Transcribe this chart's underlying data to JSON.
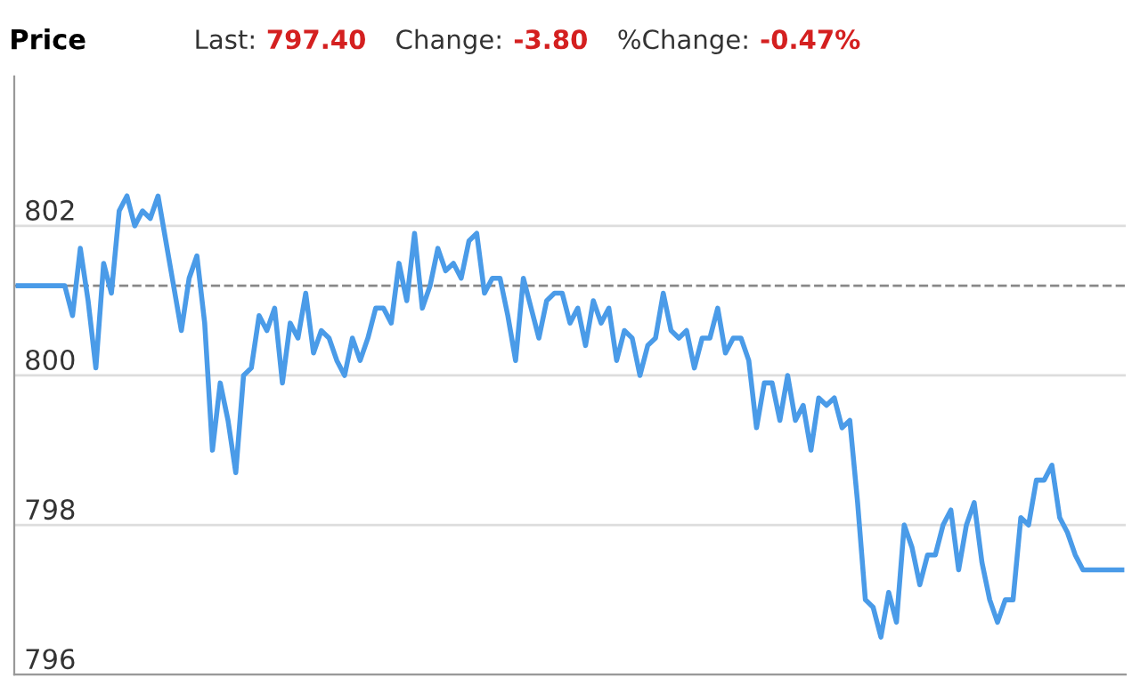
{
  "chart_data": {
    "type": "line",
    "title": "Price",
    "annotations": [
      "Last:",
      "797.40",
      "Change:",
      "-3.80",
      "%Change:",
      "-0.47%"
    ],
    "categories": [
      null,
      null,
      null,
      null,
      null,
      null,
      null,
      null,
      null,
      null,
      null,
      null,
      null,
      null,
      null,
      null,
      null,
      null,
      null,
      null,
      null,
      null,
      null,
      null,
      null,
      null,
      null,
      null,
      null,
      null,
      null,
      null,
      null,
      null,
      null,
      null,
      null,
      null,
      null,
      null,
      null,
      null,
      null,
      null,
      null,
      null,
      null,
      null,
      null,
      null,
      null,
      null,
      null,
      null,
      null,
      null,
      null,
      null,
      null,
      null,
      null,
      null,
      null,
      null,
      null,
      null,
      null,
      null,
      null,
      null,
      null,
      null,
      null,
      null,
      null,
      null,
      null,
      null,
      null,
      null,
      null,
      null,
      null,
      null,
      null,
      null,
      null,
      null,
      null,
      null,
      null,
      null,
      null,
      null,
      null,
      null,
      null,
      null,
      null,
      null,
      null,
      null,
      null,
      null,
      null,
      null,
      null,
      null,
      null,
      null,
      null,
      null,
      null,
      null,
      null,
      null,
      null,
      null,
      null,
      null,
      null,
      null,
      null,
      null,
      null,
      null,
      null,
      null,
      null,
      null,
      null,
      null,
      null,
      null,
      null,
      null,
      null,
      null,
      null,
      null,
      null,
      null,
      null
    ],
    "series": [
      {
        "color": "#4a9be8",
        "values": [
          801.2,
          801.2,
          801.2,
          801.2,
          801.2,
          801.2,
          801.2,
          800.8,
          801.7,
          801.0,
          800.1,
          801.5,
          801.1,
          802.2,
          802.4,
          802.0,
          802.2,
          802.1,
          802.4,
          801.8,
          801.2,
          800.6,
          801.3,
          801.6,
          800.7,
          799.0,
          799.9,
          799.4,
          798.7,
          800.0,
          800.1,
          800.8,
          800.6,
          800.9,
          799.9,
          800.7,
          800.5,
          801.1,
          800.3,
          800.6,
          800.5,
          800.2,
          800.0,
          800.5,
          800.2,
          800.5,
          800.9,
          800.9,
          800.7,
          801.5,
          801.0,
          801.9,
          800.9,
          801.2,
          801.7,
          801.4,
          801.5,
          801.3,
          801.8,
          801.9,
          801.1,
          801.3,
          801.3,
          800.8,
          800.2,
          801.3,
          800.9,
          800.5,
          801.0,
          801.1,
          801.1,
          800.7,
          800.9,
          800.4,
          801.0,
          800.7,
          800.9,
          800.2,
          800.6,
          800.5,
          800.0,
          800.4,
          800.5,
          801.1,
          800.6,
          800.5,
          800.6,
          800.1,
          800.5,
          800.5,
          800.9,
          800.3,
          800.5,
          800.5,
          800.2,
          799.3,
          799.9,
          799.9,
          799.4,
          800.0,
          799.4,
          799.6,
          799.0,
          799.7,
          799.6,
          799.7,
          799.3,
          799.4,
          798.3,
          797.0,
          796.9,
          796.5,
          797.1,
          796.7,
          798.0,
          797.7,
          797.2,
          797.6,
          797.6,
          798.0,
          798.2,
          797.4,
          798.0,
          798.3,
          797.5,
          797.0,
          796.7,
          797.0,
          797.0,
          798.1,
          798.0,
          798.6,
          798.6,
          798.8,
          798.1,
          797.9,
          797.6,
          797.4,
          797.4,
          797.4,
          797.4,
          797.4,
          797.4
        ]
      }
    ],
    "ylim": [
      796,
      804
    ],
    "yticks": [
      796,
      798,
      800,
      802
    ],
    "grid": "y",
    "ref_lines": [
      {
        "axis": "y",
        "value": 801.2,
        "color": "#888888",
        "line_style": "dashed"
      }
    ],
    "marker": "none",
    "line_style": "solid",
    "legend": false
  }
}
